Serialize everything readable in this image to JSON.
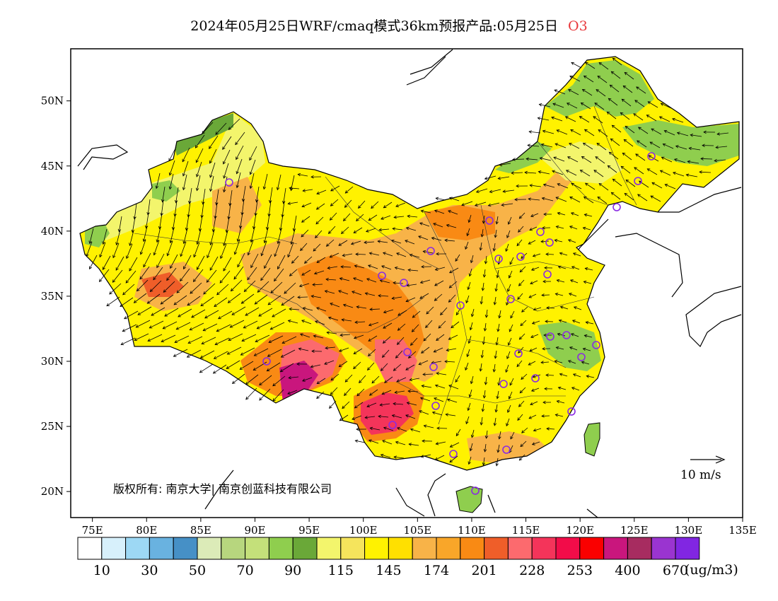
{
  "title": {
    "main": "2024年05月25日WRF/cmaq模式36km预报产品:05月25日",
    "species": "O3"
  },
  "map": {
    "lon_ticks": [
      "75E",
      "80E",
      "85E",
      "90E",
      "95E",
      "100E",
      "105E",
      "110E",
      "115E",
      "120E",
      "125E",
      "130E",
      "135E"
    ],
    "lat_ticks": [
      "20N",
      "25N",
      "30N",
      "35N",
      "40N",
      "45N",
      "50N"
    ],
    "lon_range": [
      73,
      135
    ],
    "lat_range": [
      18,
      54
    ],
    "copyright": "版权所有: 南京大学| 南京创蓝科技有限公司",
    "wind_reference": "10 m/s"
  },
  "legend": {
    "colors": [
      "#ffffff",
      "#d7f0fb",
      "#9dd8f4",
      "#69b2e0",
      "#4690c6",
      "#dcebb8",
      "#b7d67e",
      "#c4e07a",
      "#8fce4e",
      "#6aa838",
      "#f3f56c",
      "#f5e45c",
      "#fff200",
      "#ffe000",
      "#f8b348",
      "#f9a629",
      "#f98a14",
      "#ef5e29",
      "#fc6a6e",
      "#f4345a",
      "#f20c49",
      "#fa0000",
      "#c9167d",
      "#a72c60",
      "#9a34d0",
      "#8126e2"
    ],
    "labels": [
      "10",
      "30",
      "50",
      "70",
      "90",
      "115",
      "145",
      "174",
      "201",
      "228",
      "253",
      "400",
      "670"
    ],
    "unit": "(ug/m3)"
  },
  "colors": {
    "land_low": "#f5f0a0",
    "land_mid": "#fff200",
    "land_high": "#f9a629",
    "land_very_high": "#f4345a",
    "green": "#8fce4e",
    "station_marker": "#8a2be2"
  }
}
